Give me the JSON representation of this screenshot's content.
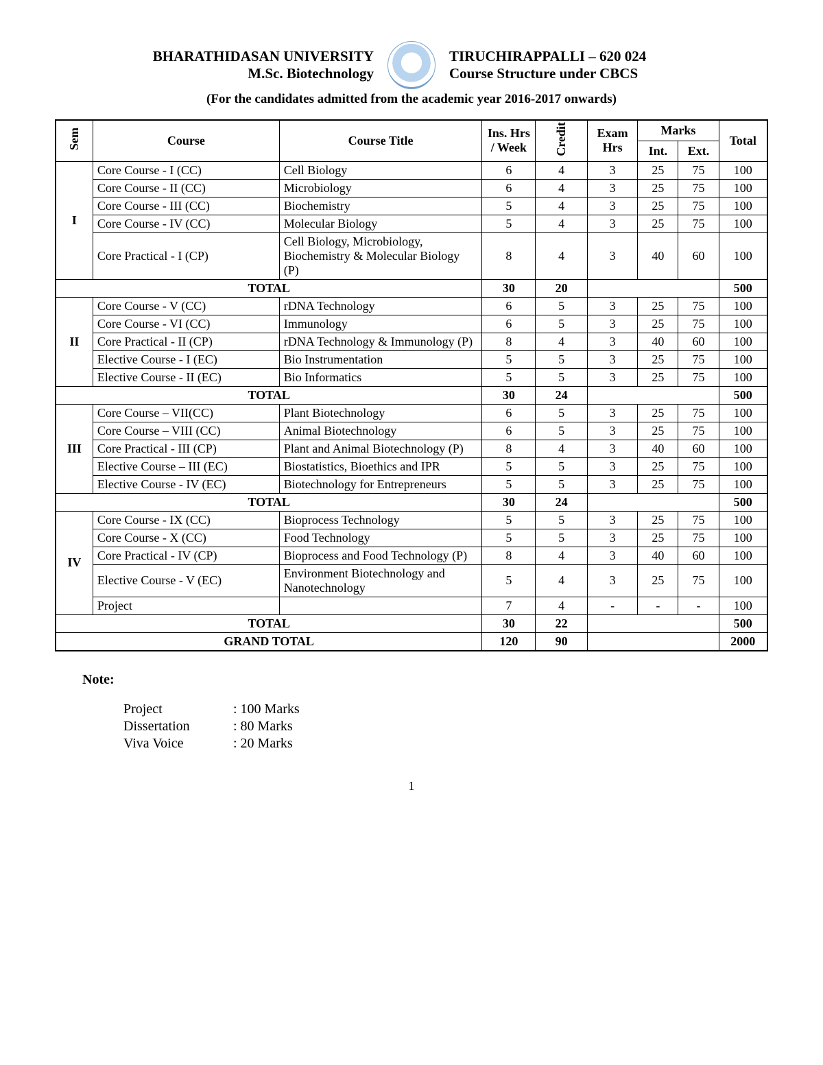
{
  "header": {
    "university": "BHARATHIDASAN UNIVERSITY",
    "program": "M.Sc. Biotechnology",
    "location": "TIRUCHIRAPPALLI – 620 024",
    "scheme": "Course Structure under CBCS",
    "subtitle": "(For the candidates admitted from the academic year 2016-2017 onwards)"
  },
  "columns": {
    "sem": "Sem",
    "course": "Course",
    "title": "Course Title",
    "hrs": "Ins. Hrs / Week",
    "credit": "Credit",
    "exam": "Exam Hrs",
    "marks": "Marks",
    "int": "Int.",
    "ext": "Ext.",
    "total": "Total"
  },
  "semesters": [
    {
      "label": "I",
      "rows": [
        {
          "course": "Core Course - I (CC)",
          "title": "Cell Biology",
          "hrs": "6",
          "credit": "4",
          "exam": "3",
          "int": "25",
          "ext": "75",
          "tot": "100"
        },
        {
          "course": "Core  Course - II (CC)",
          "title": "Microbiology",
          "hrs": "6",
          "credit": "4",
          "exam": "3",
          "int": "25",
          "ext": "75",
          "tot": "100"
        },
        {
          "course": "Core Course - III (CC)",
          "title": "Biochemistry",
          "hrs": "5",
          "credit": "4",
          "exam": "3",
          "int": "25",
          "ext": "75",
          "tot": "100"
        },
        {
          "course": "Core Course - IV (CC)",
          "title": "Molecular Biology",
          "hrs": "5",
          "credit": "4",
          "exam": "3",
          "int": "25",
          "ext": "75",
          "tot": "100"
        },
        {
          "course": "Core Practical - I (CP)",
          "title": "Cell Biology, Microbiology, Biochemistry & Molecular Biology (P)",
          "hrs": "8",
          "credit": "4",
          "exam": "3",
          "int": "40",
          "ext": "60",
          "tot": "100"
        }
      ],
      "total": {
        "label": "TOTAL",
        "hrs": "30",
        "credit": "20",
        "tot": "500"
      }
    },
    {
      "label": "II",
      "rows": [
        {
          "course": "Core Course - V (CC)",
          "title": "rDNA Technology",
          "hrs": "6",
          "credit": "5",
          "exam": "3",
          "int": "25",
          "ext": "75",
          "tot": "100"
        },
        {
          "course": "Core Course - VI (CC)",
          "title": "Immunology",
          "hrs": "6",
          "credit": "5",
          "exam": "3",
          "int": "25",
          "ext": "75",
          "tot": "100"
        },
        {
          "course": "Core  Practical - II (CP)",
          "title": "rDNA Technology & Immunology (P)",
          "hrs": "8",
          "credit": "4",
          "exam": "3",
          "int": "40",
          "ext": "60",
          "tot": "100"
        },
        {
          "course": "Elective Course - I (EC)",
          "title": "Bio Instrumentation",
          "hrs": "5",
          "credit": "5",
          "exam": "3",
          "int": "25",
          "ext": "75",
          "tot": "100"
        },
        {
          "course": "Elective Course - II (EC)",
          "title": "Bio Informatics",
          "hrs": "5",
          "credit": "5",
          "exam": "3",
          "int": "25",
          "ext": "75",
          "tot": "100"
        }
      ],
      "total": {
        "label": "TOTAL",
        "hrs": "30",
        "credit": "24",
        "tot": "500"
      }
    },
    {
      "label": "III",
      "rows": [
        {
          "course": "Core Course – VII(CC)",
          "title": "Plant Biotechnology",
          "hrs": "6",
          "credit": "5",
          "exam": "3",
          "int": "25",
          "ext": "75",
          "tot": "100"
        },
        {
          "course": "Core Course – VIII (CC)",
          "title": "Animal Biotechnology",
          "hrs": "6",
          "credit": "5",
          "exam": "3",
          "int": "25",
          "ext": "75",
          "tot": "100"
        },
        {
          "course": "Core Practical - III (CP)",
          "title": "Plant and Animal Biotechnology (P)",
          "hrs": "8",
          "credit": "4",
          "exam": "3",
          "int": "40",
          "ext": "60",
          "tot": "100"
        },
        {
          "course": "Elective Course – III (EC)",
          "title": "Biostatistics, Bioethics and IPR",
          "hrs": "5",
          "credit": "5",
          "exam": "3",
          "int": "25",
          "ext": "75",
          "tot": "100"
        },
        {
          "course": "Elective Course - IV (EC)",
          "title": "Biotechnology for Entrepreneurs",
          "hrs": "5",
          "credit": "5",
          "exam": "3",
          "int": "25",
          "ext": "75",
          "tot": "100"
        }
      ],
      "total": {
        "label": "TOTAL",
        "hrs": "30",
        "credit": "24",
        "tot": "500"
      }
    },
    {
      "label": "IV",
      "rows": [
        {
          "course": "Core Course - IX (CC)",
          "title": "Bioprocess Technology",
          "hrs": "5",
          "credit": "5",
          "exam": "3",
          "int": "25",
          "ext": "75",
          "tot": "100"
        },
        {
          "course": "Core Course - X (CC)",
          "title": "Food Technology",
          "hrs": "5",
          "credit": "5",
          "exam": "3",
          "int": "25",
          "ext": "75",
          "tot": "100"
        },
        {
          "course": "Core Practical - IV (CP)",
          "title": "Bioprocess and Food Technology (P)",
          "hrs": "8",
          "credit": "4",
          "exam": "3",
          "int": "40",
          "ext": "60",
          "tot": "100"
        },
        {
          "course": "Elective Course - V (EC)",
          "title": "Environment Biotechnology and Nanotechnology",
          "hrs": "5",
          "credit": "4",
          "exam": "3",
          "int": "25",
          "ext": "75",
          "tot": "100"
        },
        {
          "course": "Project",
          "title": "",
          "hrs": "7",
          "credit": "4",
          "exam": "-",
          "int": "-",
          "ext": "-",
          "tot": "100"
        }
      ],
      "total": {
        "label": "TOTAL",
        "hrs": "30",
        "credit": "22",
        "tot": "500"
      }
    }
  ],
  "grand": {
    "label": "GRAND TOTAL",
    "hrs": "120",
    "credit": "90",
    "tot": "2000"
  },
  "note": {
    "title": "Note:",
    "items": [
      {
        "k": "Project",
        "v": ": 100 Marks"
      },
      {
        "k": "Dissertation",
        "v": ": 80 Marks"
      },
      {
        "k": "Viva Voice",
        "v": ": 20 Marks"
      }
    ]
  },
  "page": "1"
}
